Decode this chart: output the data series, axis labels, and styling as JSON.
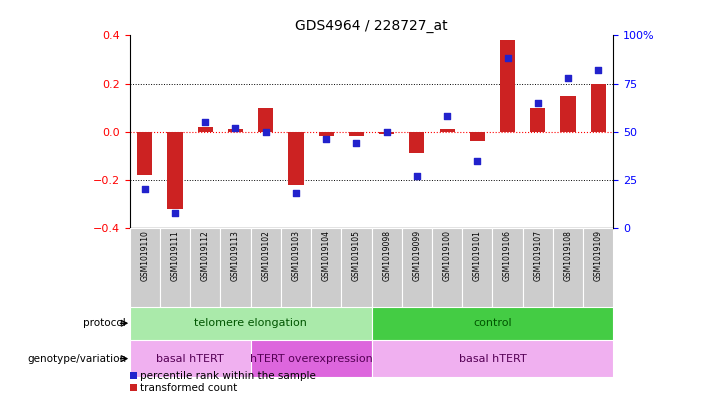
{
  "title": "GDS4964 / 228727_at",
  "samples": [
    "GSM1019110",
    "GSM1019111",
    "GSM1019112",
    "GSM1019113",
    "GSM1019102",
    "GSM1019103",
    "GSM1019104",
    "GSM1019105",
    "GSM1019098",
    "GSM1019099",
    "GSM1019100",
    "GSM1019101",
    "GSM1019106",
    "GSM1019107",
    "GSM1019108",
    "GSM1019109"
  ],
  "transformed_count": [
    -0.18,
    -0.32,
    0.02,
    0.01,
    0.1,
    -0.22,
    -0.02,
    -0.02,
    -0.01,
    -0.09,
    0.01,
    -0.04,
    0.38,
    0.1,
    0.15,
    0.2
  ],
  "percentile_rank": [
    20,
    8,
    55,
    52,
    50,
    18,
    46,
    44,
    50,
    27,
    58,
    35,
    88,
    65,
    78,
    82
  ],
  "bar_color": "#cc2222",
  "dot_color": "#2222cc",
  "ylim_left": [
    -0.4,
    0.4
  ],
  "ylim_right": [
    0,
    100
  ],
  "yticks_left": [
    -0.4,
    -0.2,
    0.0,
    0.2,
    0.4
  ],
  "yticks_right": [
    0,
    25,
    50,
    75,
    100
  ],
  "ytick_labels_right": [
    "0",
    "25",
    "50",
    "75",
    "100%"
  ],
  "protocol_groups": [
    {
      "label": "telomere elongation",
      "start": 0,
      "end": 8,
      "color": "#aaeaaa"
    },
    {
      "label": "control",
      "start": 8,
      "end": 16,
      "color": "#44cc44"
    }
  ],
  "genotype_groups": [
    {
      "label": "basal hTERT",
      "start": 0,
      "end": 4,
      "color": "#f0b0f0"
    },
    {
      "label": "hTERT overexpression",
      "start": 4,
      "end": 8,
      "color": "#dd66dd"
    },
    {
      "label": "basal hTERT",
      "start": 8,
      "end": 16,
      "color": "#f0b0f0"
    }
  ],
  "protocol_label": "protocol",
  "genotype_label": "genotype/variation",
  "legend_items": [
    {
      "label": "transformed count",
      "color": "#cc2222"
    },
    {
      "label": "percentile rank within the sample",
      "color": "#2222cc"
    }
  ]
}
